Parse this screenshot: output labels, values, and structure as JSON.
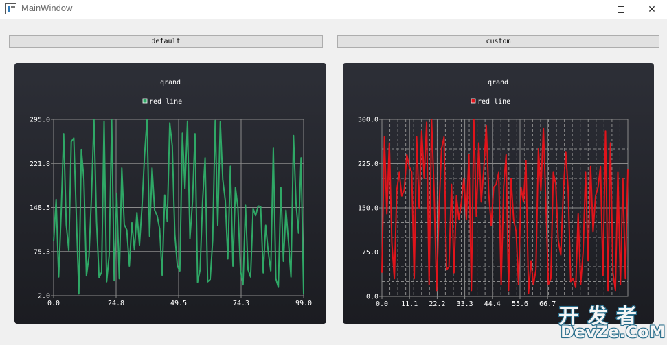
{
  "window": {
    "title": "MainWindow",
    "app_icon": "window-app-icon",
    "controls": {
      "minimize_icon": "minimize-icon",
      "maximize_icon": "maximize-icon",
      "close_icon": "close-icon",
      "close_glyph": "✕"
    }
  },
  "buttons": {
    "default_label": "default",
    "custom_label": "custom"
  },
  "colors": {
    "chart_background_top": "#2d2f37",
    "chart_background_bottom": "#1b1c21",
    "green_series": "#2fa866",
    "red_series": "#e0141b",
    "grid": "#8a8a8a",
    "chart_text": "#ffffff"
  },
  "watermark": {
    "top": "开发者",
    "bottom": "DevZe.CoM"
  },
  "chart_data": [
    {
      "type": "line",
      "title": "qrand",
      "legend_position": "top",
      "grid": true,
      "xlim": [
        0,
        99
      ],
      "ylim": [
        2,
        295
      ],
      "xticks": [
        "0.0",
        "24.8",
        "49.5",
        "74.3",
        "99.0"
      ],
      "yticks": [
        "2.0",
        "75.3",
        "148.5",
        "221.8",
        "295.0"
      ],
      "series": [
        {
          "name": "red line",
          "color": "#2fa866",
          "x": [
            0,
            1,
            2,
            3,
            4,
            5,
            6,
            7,
            8,
            9,
            10,
            11,
            12,
            13,
            14,
            15,
            16,
            17,
            18,
            19,
            20,
            21,
            22,
            23,
            24,
            25,
            26,
            27,
            28,
            29,
            30,
            31,
            32,
            33,
            34,
            35,
            36,
            37,
            38,
            39,
            40,
            41,
            42,
            43,
            44,
            45,
            46,
            47,
            48,
            49,
            50,
            51,
            52,
            53,
            54,
            55,
            56,
            57,
            58,
            59,
            60,
            61,
            62,
            63,
            64,
            65,
            66,
            67,
            68,
            69,
            70,
            71,
            72,
            73,
            74,
            75,
            76,
            77,
            78,
            79,
            80,
            81,
            82,
            83,
            84,
            85,
            86,
            87,
            88,
            89,
            90,
            91,
            92,
            93,
            94,
            95,
            96,
            97,
            98,
            99
          ],
          "values": [
            92,
            162,
            33,
            138,
            271,
            120,
            77,
            258,
            264,
            134,
            5,
            245,
            195,
            35,
            67,
            168,
            295,
            125,
            32,
            41,
            292,
            25,
            69,
            294,
            27,
            172,
            30,
            214,
            120,
            111,
            51,
            123,
            78,
            140,
            86,
            150,
            235,
            295,
            101,
            214,
            144,
            135,
            113,
            36,
            169,
            125,
            289,
            251,
            104,
            51,
            43,
            272,
            180,
            292,
            97,
            158,
            271,
            24,
            45,
            159,
            231,
            25,
            29,
            94,
            293,
            119,
            291,
            195,
            160,
            63,
            217,
            51,
            182,
            148,
            44,
            20,
            152,
            45,
            33,
            147,
            135,
            151,
            150,
            40,
            119,
            75,
            43,
            247,
            30,
            16,
            182,
            59,
            144,
            93,
            33,
            268,
            155,
            106,
            231,
            4
          ]
        }
      ]
    },
    {
      "type": "line",
      "title": "qrand",
      "legend_position": "top",
      "grid": true,
      "xlim": [
        0,
        99
      ],
      "ylim": [
        0,
        300
      ],
      "xticks": [
        "0.0",
        "11.1",
        "22.2",
        "33.3",
        "44.4",
        "55.6",
        "66.7"
      ],
      "yticks": [
        "0.0",
        "75.0",
        "150.0",
        "225.0",
        "300.0"
      ],
      "series": [
        {
          "name": "red line",
          "color": "#e0141b",
          "x": [
            0,
            1,
            2,
            3,
            4,
            5,
            6,
            7,
            8,
            9,
            10,
            11,
            12,
            13,
            14,
            15,
            16,
            17,
            18,
            19,
            20,
            21,
            22,
            23,
            24,
            25,
            26,
            27,
            28,
            29,
            30,
            31,
            32,
            33,
            34,
            35,
            36,
            37,
            38,
            39,
            40,
            41,
            42,
            43,
            44,
            45,
            46,
            47,
            48,
            49,
            50,
            51,
            52,
            53,
            54,
            55,
            56,
            57,
            58,
            59,
            60,
            61,
            62,
            63,
            64,
            65,
            66,
            67,
            68,
            69,
            70,
            71,
            72,
            73,
            74,
            75,
            76,
            77,
            78,
            79,
            80,
            81,
            82,
            83,
            84,
            85,
            86,
            87,
            88,
            89,
            90,
            91,
            92,
            93,
            94,
            95,
            96,
            97,
            98,
            99
          ],
          "values": [
            40,
            270,
            140,
            260,
            90,
            30,
            180,
            210,
            170,
            180,
            240,
            220,
            210,
            30,
            270,
            150,
            280,
            200,
            295,
            20,
            300,
            180,
            10,
            150,
            250,
            270,
            45,
            50,
            190,
            40,
            170,
            130,
            160,
            200,
            130,
            240,
            10,
            300,
            135,
            260,
            160,
            215,
            290,
            175,
            120,
            185,
            190,
            210,
            20,
            185,
            240,
            10,
            200,
            130,
            110,
            20,
            185,
            160,
            230,
            5,
            60,
            20,
            45,
            250,
            180,
            285,
            160,
            20,
            30,
            210,
            190,
            95,
            70,
            175,
            245,
            180,
            25,
            30,
            15,
            140,
            20,
            75,
            210,
            60,
            220,
            110,
            170,
            185,
            220,
            35,
            280,
            10,
            260,
            40,
            10,
            210,
            20,
            200,
            30,
            215
          ]
        }
      ]
    }
  ]
}
